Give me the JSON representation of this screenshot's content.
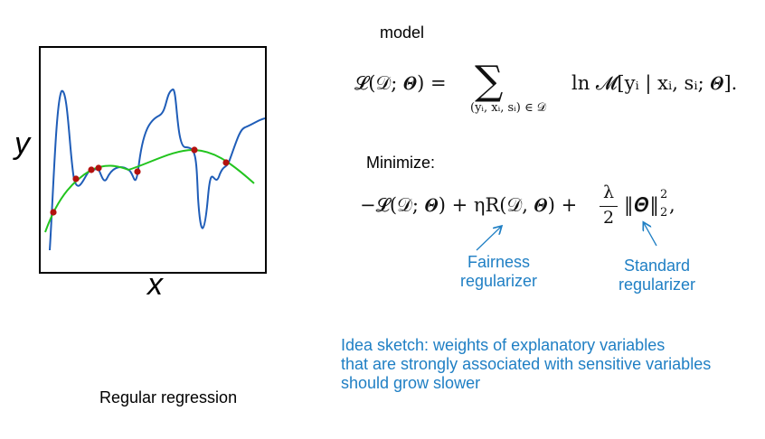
{
  "plot": {
    "x_label": "x",
    "y_label": "y",
    "caption": "Regular regression"
  },
  "model_label": "model",
  "minimize_label": "Minimize:",
  "formula_1": {
    "lhs": "𝓛(𝒟; 𝜣) =",
    "sum_symbol": "∑",
    "sum_subscript": "(yᵢ, xᵢ, sᵢ) ∈ 𝒟",
    "rhs": "ln 𝓜[yᵢ | xᵢ, sᵢ; 𝜣]."
  },
  "formula_2": {
    "term_a": "−𝓛(𝒟; 𝜣) + ηR(𝒟, 𝜣) +",
    "frac_num": "λ",
    "frac_den": "2",
    "term_b": "‖𝜣‖",
    "exp_sup": "2",
    "exp_sub": "2",
    "tail": ","
  },
  "annotations": {
    "fairness": [
      "Fairness",
      "regularizer"
    ],
    "standard": [
      "Standard",
      "regularizer"
    ]
  },
  "idea_note": [
    "Idea sketch: weights of explanatory variables",
    "that are strongly associated with sensitive variables",
    "should grow slower"
  ],
  "colors": {
    "overfit_curve": "#1f5db8",
    "regular_curve": "#22c41e",
    "data_points": "#b3120f",
    "annotation": "#1f7fc4"
  }
}
